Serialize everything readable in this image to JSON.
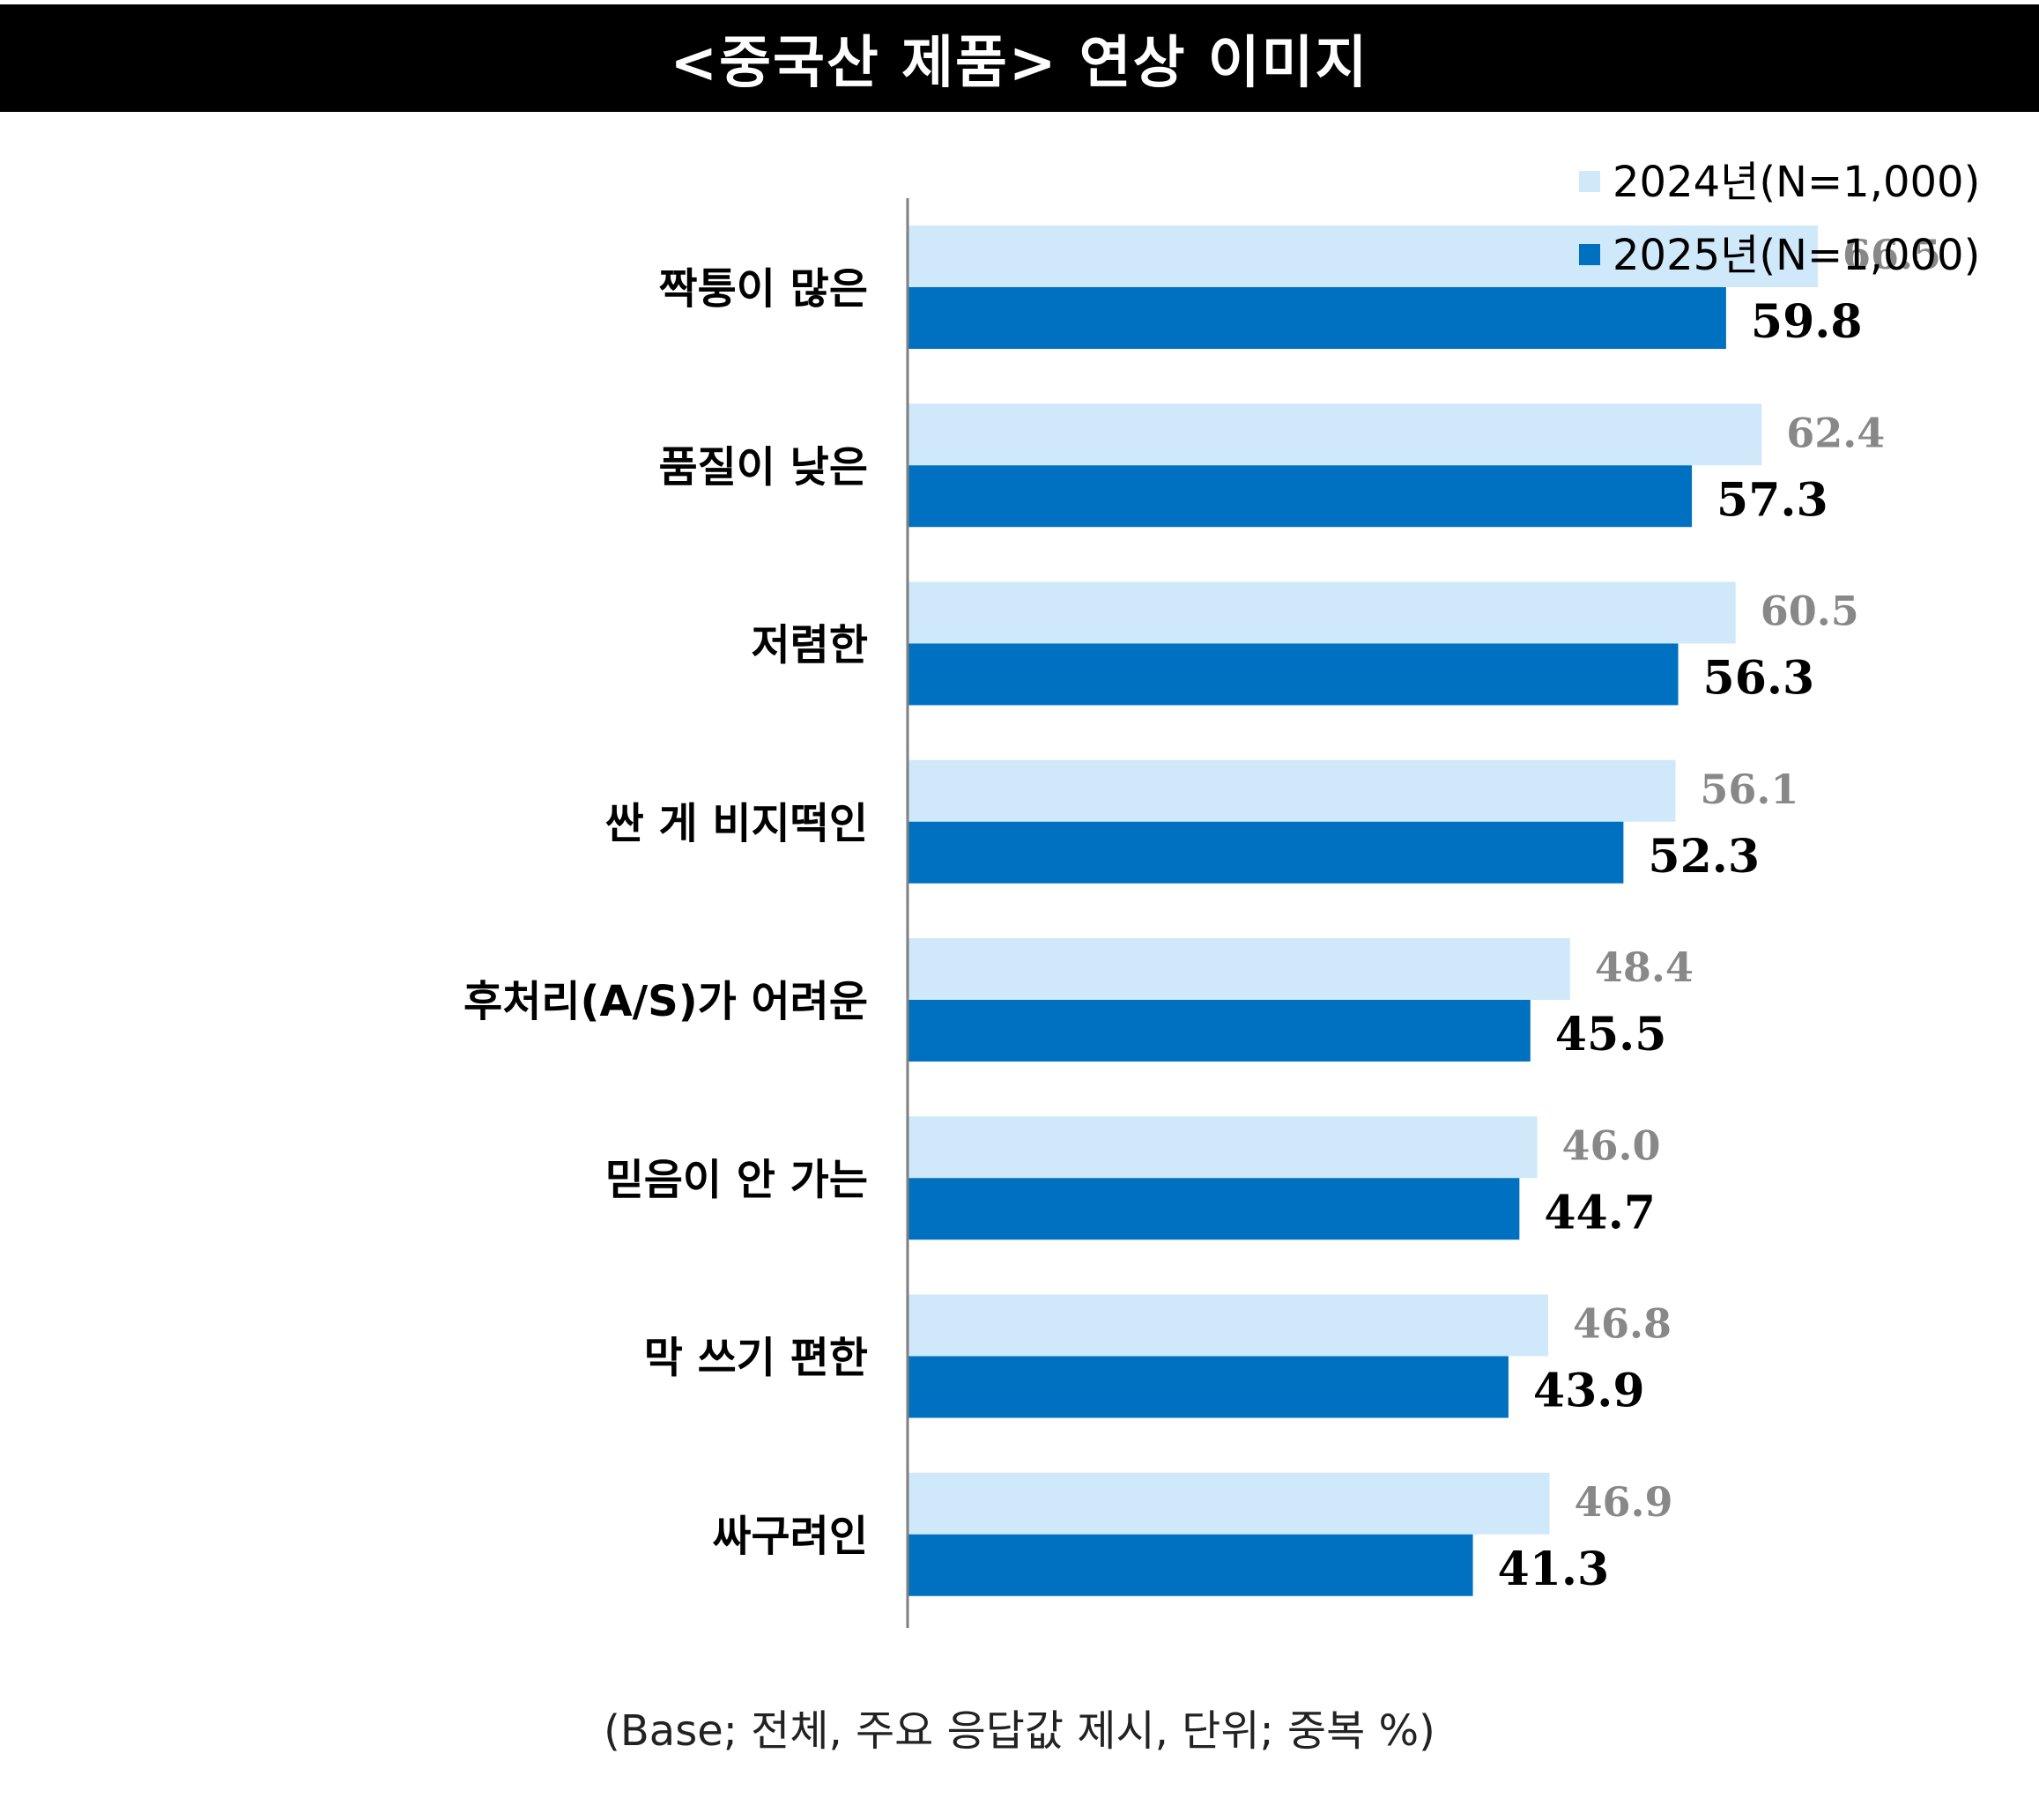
{
  "title": "<중국산 제품> 연상 이미지",
  "footnote": "(Base; 전체, 주요 응답값 제시, 단위; 중복 %)",
  "chart_data": {
    "type": "bar",
    "orientation": "horizontal",
    "categories": [
      "짝퉁이 많은",
      "품질이 낮은",
      "저렴한",
      "싼 게 비지떡인",
      "후처리(A/S)가 어려운",
      "믿음이 안 가는",
      "막 쓰기 편한",
      "싸구려인"
    ],
    "series": [
      {
        "name": "2024년(N=1,000)",
        "color": "#cfe8fa",
        "label_color": "#888888",
        "values": [
          66.5,
          62.4,
          60.5,
          56.1,
          48.4,
          46.0,
          46.8,
          46.9
        ]
      },
      {
        "name": "2025년(N=1,000)",
        "color": "#0070c0",
        "label_color": "#000000",
        "values": [
          59.8,
          57.3,
          56.3,
          52.3,
          45.5,
          44.7,
          43.9,
          41.3
        ]
      }
    ],
    "value_labels": [
      [
        "66.5",
        "62.4",
        "60.5",
        "56.1",
        "48.4",
        "46.0",
        "46.8",
        "46.9"
      ],
      [
        "59.8",
        "57.3",
        "56.3",
        "52.3",
        "45.5",
        "44.7",
        "43.9",
        "41.3"
      ]
    ],
    "xlim": [
      0,
      150
    ],
    "grid": false,
    "legend_position": "top-right"
  }
}
